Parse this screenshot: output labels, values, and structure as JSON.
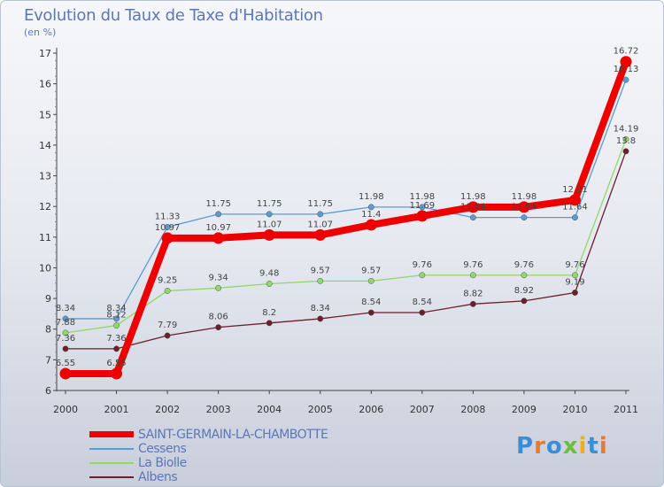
{
  "title": "Evolution du Taux de Taxe d'Habitation",
  "subtitle": "(en %)",
  "logo": {
    "letters": [
      {
        "ch": "P",
        "color": "#3a8ed8"
      },
      {
        "ch": "r",
        "color": "#e87a2a"
      },
      {
        "ch": "o",
        "color": "#3a8ed8"
      },
      {
        "ch": "x",
        "color": "#6cbf3c"
      },
      {
        "ch": "i",
        "color": "#e8b020"
      },
      {
        "ch": "t",
        "color": "#3a8ed8"
      },
      {
        "ch": "i",
        "color": "#e87a2a"
      }
    ]
  },
  "chart_data": {
    "type": "line",
    "title": "Evolution du Taux de Taxe d'Habitation",
    "ylabel": "(en %)",
    "categories": [
      "2000",
      "2001",
      "2002",
      "2003",
      "2004",
      "2005",
      "2006",
      "2007",
      "2008",
      "2009",
      "2010",
      "2011"
    ],
    "ylim": [
      6,
      17
    ],
    "yticks": [
      6,
      7,
      8,
      9,
      10,
      11,
      12,
      13,
      14,
      15,
      16,
      17
    ],
    "grid": false,
    "series": [
      {
        "name": "Albens",
        "color": "#6b1f2a",
        "values": [
          7.36,
          7.36,
          7.79,
          8.06,
          8.2,
          8.34,
          8.54,
          8.54,
          8.82,
          8.92,
          9.19,
          13.8
        ],
        "labels": [
          "7.36",
          "7.36",
          "7.79",
          "8.06",
          "8.2",
          "8.34",
          "8.54",
          "8.54",
          "8.82",
          "8.92",
          "9.19",
          "13.8"
        ]
      },
      {
        "name": "La Biolle",
        "color": "#8fd86a",
        "values": [
          7.88,
          8.12,
          9.25,
          9.34,
          9.48,
          9.57,
          9.57,
          9.76,
          9.76,
          9.76,
          9.76,
          14.19
        ],
        "labels": [
          "7.88",
          "8.12",
          "9.25",
          "9.34",
          "9.48",
          "9.57",
          "9.57",
          "9.76",
          "9.76",
          "9.76",
          "9.76",
          "14.19"
        ]
      },
      {
        "name": "Cessens",
        "color": "#5b9bd0",
        "values": [
          8.34,
          8.34,
          11.33,
          11.75,
          11.75,
          11.75,
          11.98,
          11.98,
          11.64,
          11.64,
          11.64,
          16.13
        ],
        "labels": [
          "8.34",
          "8.34",
          "11.33",
          "11.75",
          "11.75",
          "11.75",
          "11.98",
          "11.98",
          "11.64",
          "11.64",
          "11.64",
          "16.13"
        ]
      },
      {
        "name": "SAINT-GERMAIN-LA-CHAMBOTTE",
        "color": "#ee0000",
        "values": [
          6.55,
          6.55,
          10.97,
          10.97,
          11.07,
          11.07,
          11.4,
          11.69,
          11.98,
          11.98,
          12.21,
          16.72
        ],
        "labels": [
          "6.55",
          "6.55",
          "10.97",
          "10.97",
          "11.07",
          "11.07",
          "11.4",
          "11.69",
          "11.98",
          "11.98",
          "12.21",
          "16.72"
        ]
      }
    ],
    "legend_order": [
      "SAINT-GERMAIN-LA-CHAMBOTTE",
      "Cessens",
      "La Biolle",
      "Albens"
    ]
  }
}
